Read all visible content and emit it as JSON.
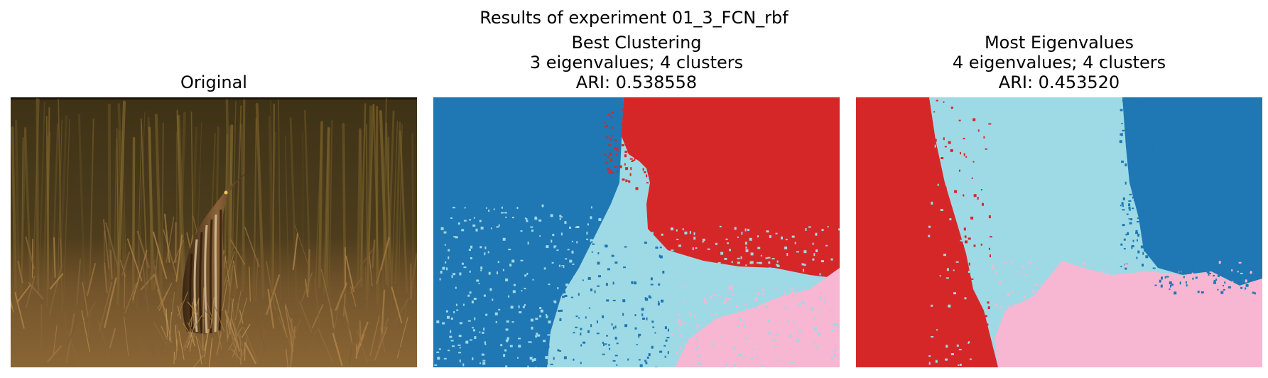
{
  "figure": {
    "suptitle": "Results of experiment 01_3_FCN_rbf"
  },
  "panels": [
    {
      "title_lines": [
        "Original"
      ],
      "content": "photograph"
    },
    {
      "title_lines": [
        "Best Clustering",
        "3 eigenvalues; 4 clusters",
        "ARI: 0.538558"
      ],
      "content": "segmentation"
    },
    {
      "title_lines": [
        "Most Eigenvalues",
        "4 eigenvalues; 4 clusters",
        "ARI: 0.453520"
      ],
      "content": "segmentation"
    }
  ],
  "colors": {
    "cluster_blue": "#1f77b4",
    "cluster_red": "#d62728",
    "cluster_lightblue": "#9edae5",
    "cluster_pink": "#f7b6d2"
  }
}
